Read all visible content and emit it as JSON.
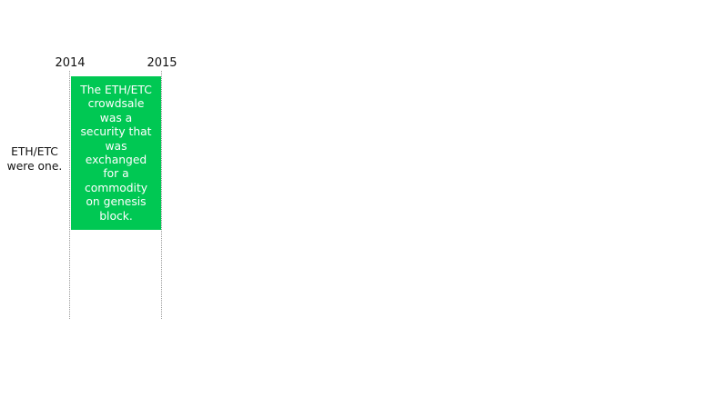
{
  "timeline": {
    "years": [
      "2014",
      "2015"
    ],
    "row_label": "ETH/ETC were one.",
    "event": {
      "text": "The ETH/ETC crowdsale was a security that was exchanged for a commodity on genesis block.",
      "color": "#00c853"
    }
  }
}
